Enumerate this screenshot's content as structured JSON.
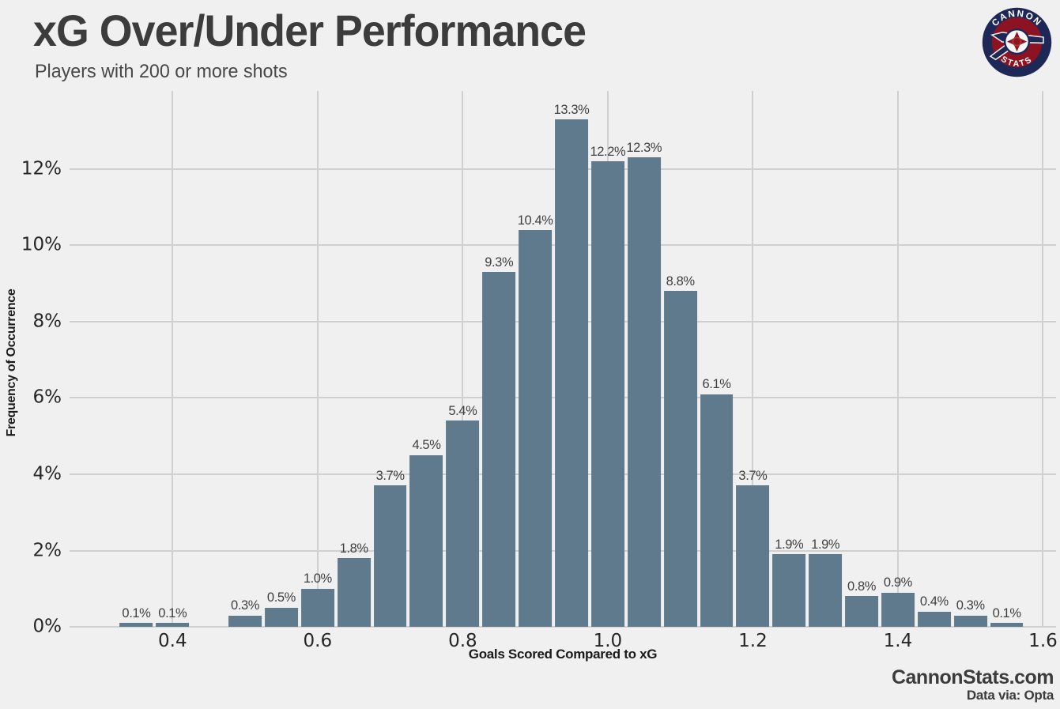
{
  "header": {
    "title": "xG Over/Under Performance",
    "subtitle": "Players with 200 or more shots"
  },
  "logo": {
    "top_text": "CANNON",
    "bottom_text": "STATS",
    "navy": "#1e2857",
    "maroon": "#8e1322"
  },
  "footer": {
    "site": "CannonStats.com",
    "data_source": "Data via: Opta"
  },
  "colors": {
    "background": "#f0f0f0",
    "grid": "#d0d0d0",
    "bar": "#5e7a8c"
  },
  "chart_data": {
    "type": "bar",
    "title": "xG Over/Under Performance",
    "subtitle": "Players with 200 or more shots",
    "xlabel": "Goals Scored Compared to xG",
    "ylabel": "Frequency of Occurrence",
    "bin_width": 0.05,
    "x": [
      0.35,
      0.4,
      0.45,
      0.5,
      0.55,
      0.6,
      0.65,
      0.7,
      0.75,
      0.8,
      0.85,
      0.9,
      0.95,
      1.0,
      1.05,
      1.1,
      1.15,
      1.2,
      1.25,
      1.3,
      1.35,
      1.4,
      1.45,
      1.5,
      1.55
    ],
    "values": [
      0.1,
      0.1,
      0.0,
      0.3,
      0.5,
      1.0,
      1.8,
      3.7,
      4.5,
      5.4,
      9.3,
      10.4,
      13.3,
      12.2,
      12.3,
      8.8,
      6.1,
      3.7,
      1.9,
      1.9,
      0.8,
      0.9,
      0.4,
      0.3,
      0.1
    ],
    "bar_labels": [
      "0.1%",
      "0.1%",
      "",
      "0.3%",
      "0.5%",
      "1.0%",
      "1.8%",
      "3.7%",
      "4.5%",
      "5.4%",
      "9.3%",
      "10.4%",
      "13.3%",
      "12.2%",
      "12.3%",
      "8.8%",
      "6.1%",
      "3.7%",
      "1.9%",
      "1.9%",
      "0.8%",
      "0.9%",
      "0.4%",
      "0.3%",
      "0.1%"
    ],
    "x_ticks": [
      0.4,
      0.6,
      0.8,
      1.0,
      1.2,
      1.4,
      1.6
    ],
    "x_tick_labels": [
      "0.4",
      "0.6",
      "0.8",
      "1.0",
      "1.2",
      "1.4",
      "1.6"
    ],
    "y_ticks": [
      0,
      2,
      4,
      6,
      8,
      10,
      12
    ],
    "y_tick_labels": [
      "0%",
      "2%",
      "4%",
      "6%",
      "8%",
      "10%",
      "12%"
    ],
    "xlim": [
      0.258,
      1.618
    ],
    "ylim": [
      0,
      14.05
    ],
    "grid": true,
    "legend": "none"
  }
}
